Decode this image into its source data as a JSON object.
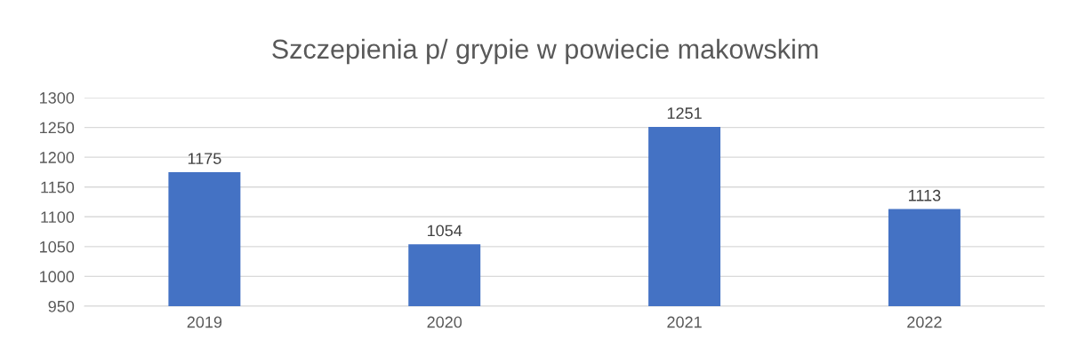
{
  "chart_data": {
    "type": "bar",
    "title": "Szczepienia p/ grypie w powiecie makowskim",
    "categories": [
      "2019",
      "2020",
      "2021",
      "2022"
    ],
    "values": [
      1175,
      1054,
      1251,
      1113
    ],
    "color": "#4472c4",
    "ylim": [
      950,
      1300
    ],
    "yticks": [
      950,
      1000,
      1050,
      1100,
      1150,
      1200,
      1250,
      1300
    ],
    "grid": "y",
    "data_labels": true
  }
}
